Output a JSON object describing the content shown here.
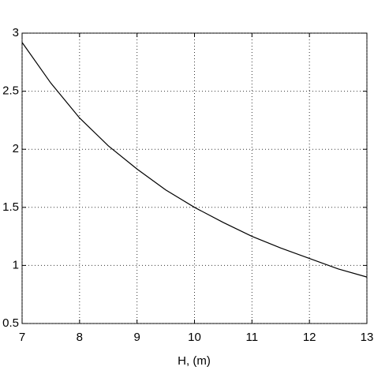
{
  "chart_data": {
    "type": "line",
    "xlabel": "H, (m)",
    "x": [
      7,
      7.5,
      8,
      8.5,
      9,
      9.5,
      10,
      10.5,
      11,
      11.5,
      12,
      12.5,
      13
    ],
    "series": [
      {
        "color": "#000000",
        "values": [
          2.92,
          2.57,
          2.27,
          2.03,
          1.83,
          1.65,
          1.5,
          1.37,
          1.25,
          1.15,
          1.06,
          0.97,
          0.9
        ]
      }
    ],
    "xlim": [
      7,
      13
    ],
    "xticks": [
      7,
      8,
      9,
      10,
      11,
      12,
      13
    ],
    "ylim": [
      0.5,
      3
    ],
    "yticks": [
      0.5,
      1,
      1.5,
      2,
      2.5,
      3
    ],
    "grid": true
  }
}
